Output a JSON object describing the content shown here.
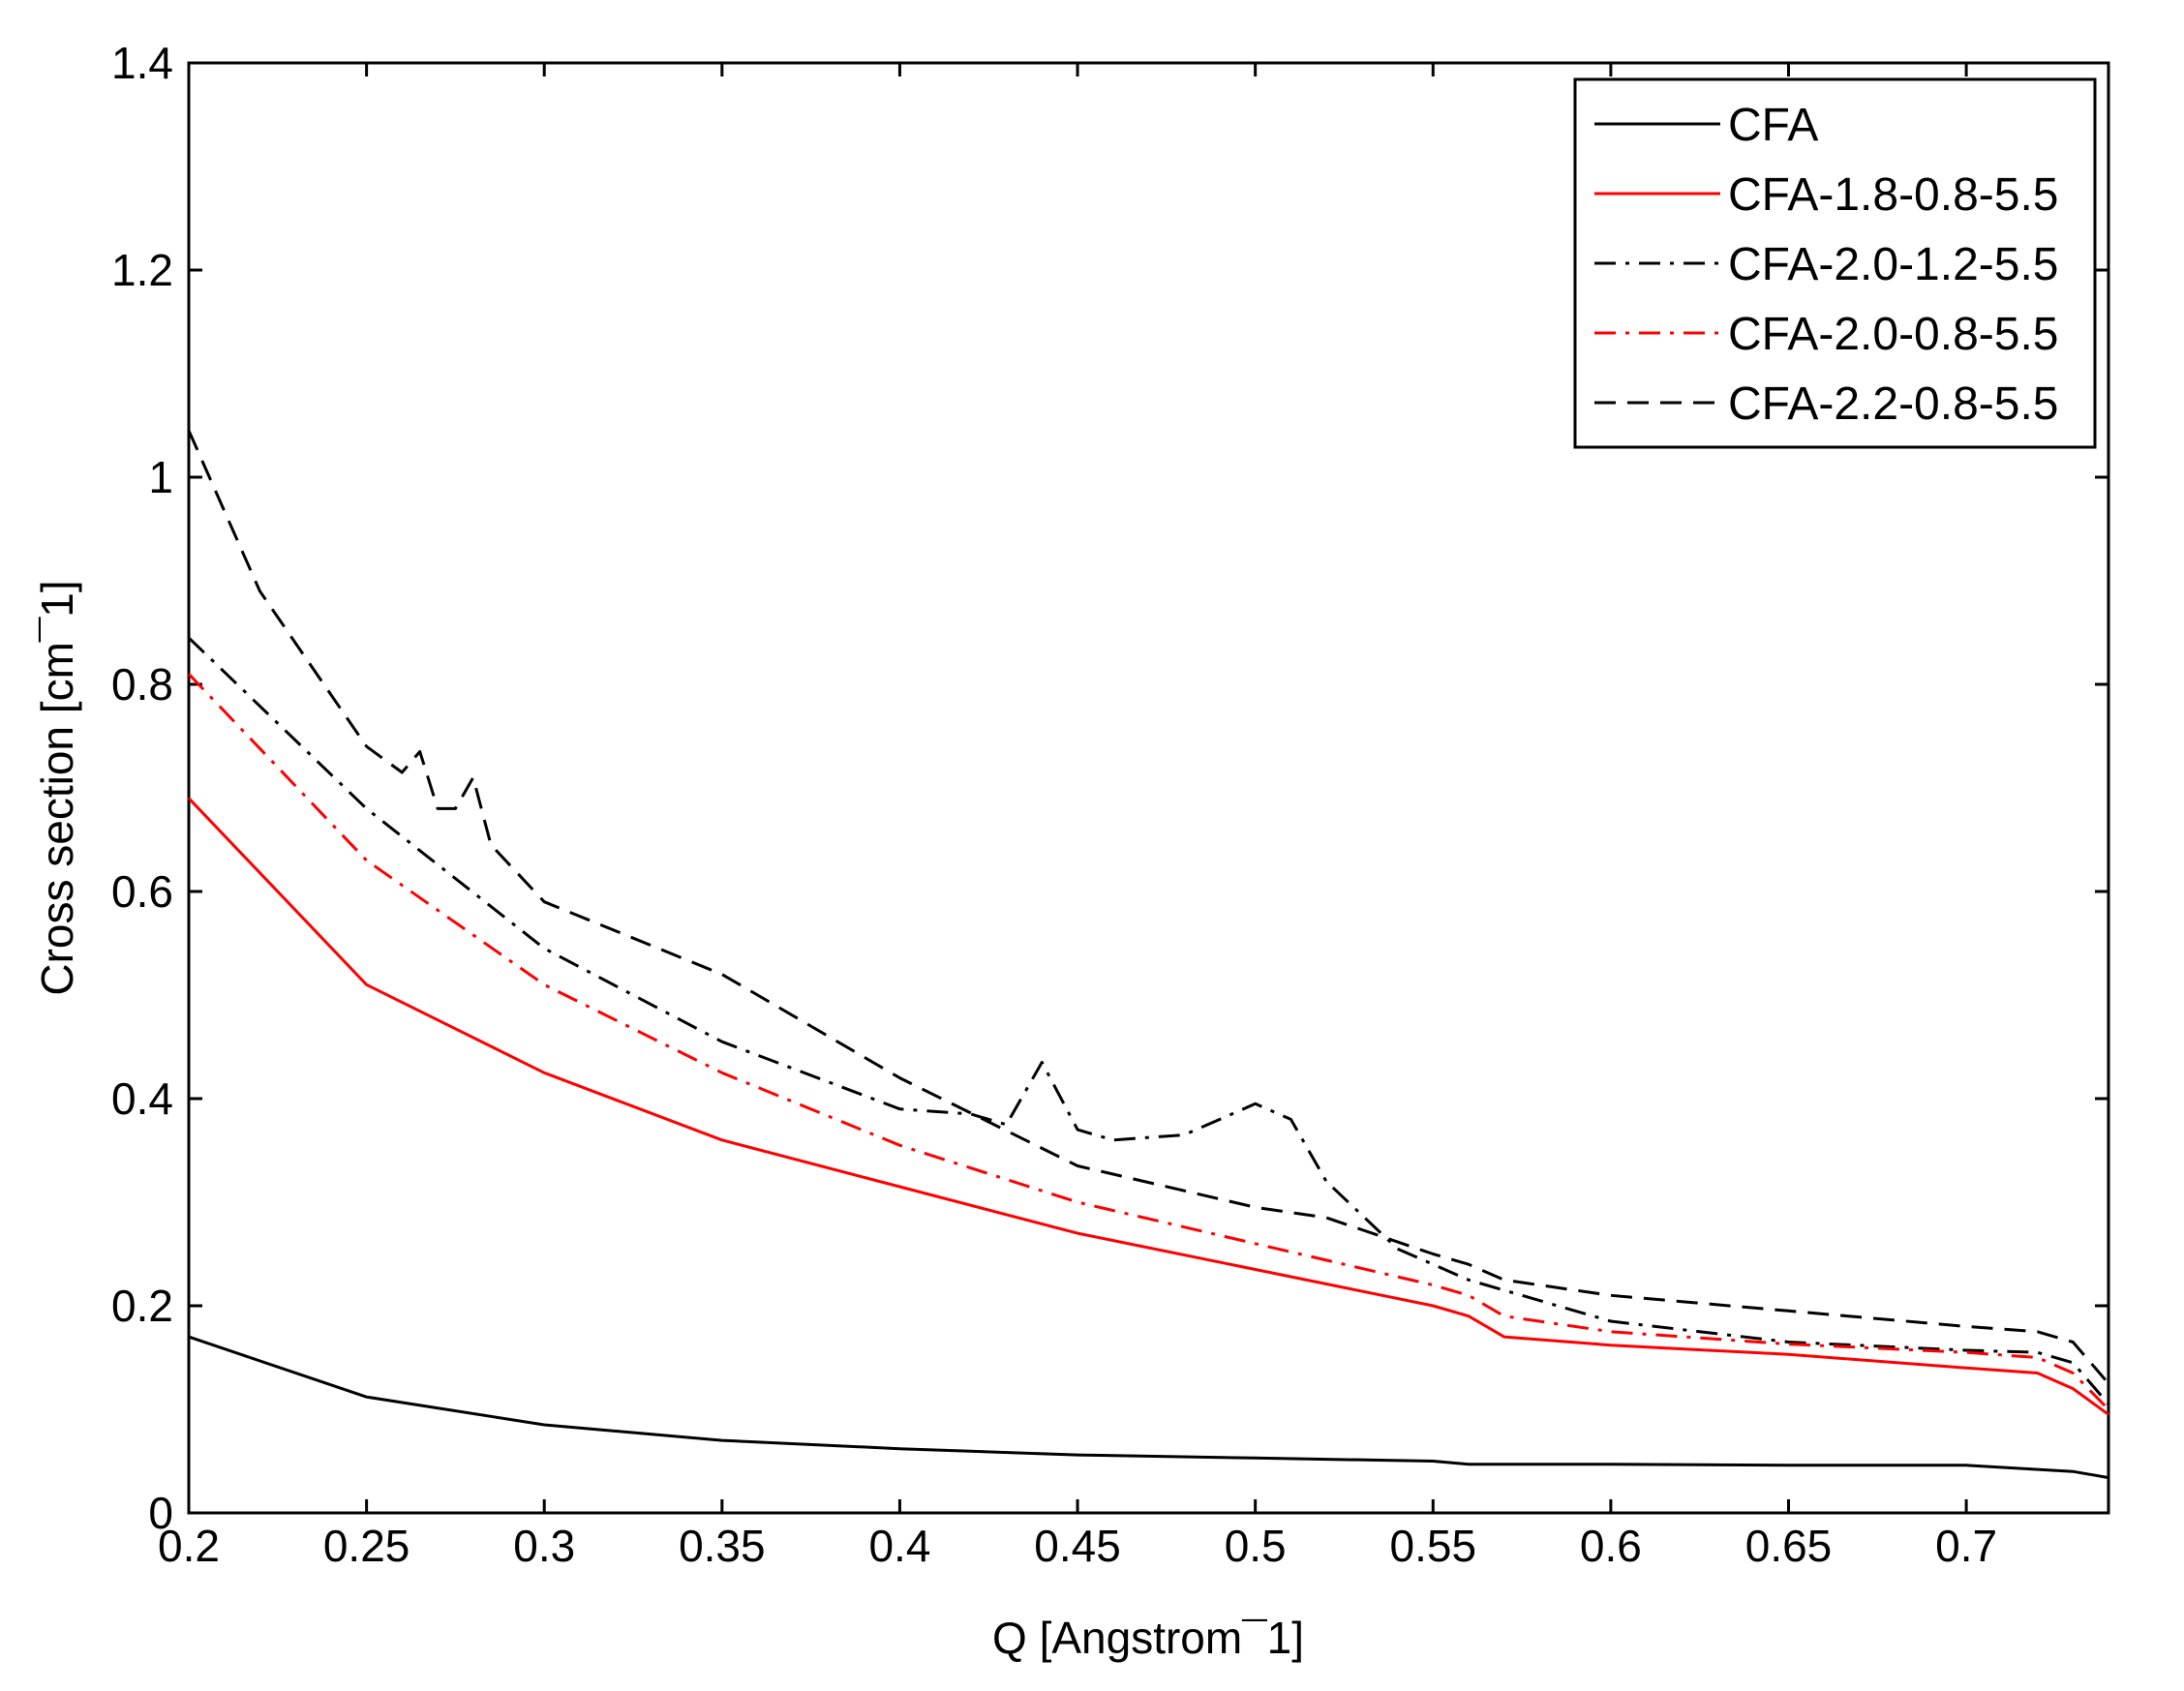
{
  "chart_data": {
    "type": "line",
    "xlabel": "Q [Angstrom¯1]",
    "ylabel": "Cross section [cm¯1]",
    "xlim": [
      0.2,
      0.74
    ],
    "ylim": [
      0,
      1.4
    ],
    "xticks": [
      0.2,
      0.25,
      0.3,
      0.35,
      0.4,
      0.45,
      0.5,
      0.55,
      0.6,
      0.65,
      0.7
    ],
    "xtick_labels": [
      "0.2",
      "0.25",
      "0.3",
      "0.35",
      "0.4",
      "0.45",
      "0.5",
      "0.55",
      "0.6",
      "0.65",
      "0.7"
    ],
    "yticks": [
      0,
      0.2,
      0.4,
      0.6,
      0.8,
      1.0,
      1.2,
      1.4
    ],
    "ytick_labels": [
      "0",
      "0.2",
      "0.4",
      "0.6",
      "0.8",
      "1",
      "1.2",
      "1.4"
    ],
    "grid": false,
    "legend_position": "top-right",
    "series": [
      {
        "name": "CFA",
        "color": "#000000",
        "dash": "solid",
        "x": [
          0.2,
          0.25,
          0.3,
          0.35,
          0.4,
          0.45,
          0.5,
          0.55,
          0.56,
          0.6,
          0.65,
          0.7,
          0.73,
          0.74
        ],
        "y": [
          0.17,
          0.112,
          0.085,
          0.07,
          0.062,
          0.056,
          0.053,
          0.05,
          0.047,
          0.047,
          0.046,
          0.046,
          0.04,
          0.034
        ]
      },
      {
        "name": "CFA-1.8-0.8-5.5",
        "color": "#ff0000",
        "dash": "solid",
        "x": [
          0.2,
          0.25,
          0.3,
          0.35,
          0.4,
          0.45,
          0.5,
          0.55,
          0.56,
          0.57,
          0.6,
          0.65,
          0.7,
          0.72,
          0.73,
          0.74
        ],
        "y": [
          0.69,
          0.51,
          0.425,
          0.36,
          0.315,
          0.27,
          0.235,
          0.2,
          0.19,
          0.17,
          0.162,
          0.153,
          0.14,
          0.135,
          0.12,
          0.095
        ]
      },
      {
        "name": "CFA-2.0-1.2-5.5",
        "color": "#000000",
        "dash": "dashdot",
        "x": [
          0.2,
          0.25,
          0.3,
          0.35,
          0.4,
          0.42,
          0.43,
          0.44,
          0.45,
          0.46,
          0.48,
          0.5,
          0.51,
          0.52,
          0.54,
          0.56,
          0.6,
          0.65,
          0.7,
          0.72,
          0.73,
          0.74
        ],
        "y": [
          0.845,
          0.68,
          0.545,
          0.455,
          0.39,
          0.385,
          0.375,
          0.435,
          0.37,
          0.36,
          0.365,
          0.395,
          0.38,
          0.32,
          0.255,
          0.225,
          0.185,
          0.165,
          0.157,
          0.155,
          0.145,
          0.105
        ]
      },
      {
        "name": "CFA-2.0-0.8-5.5",
        "color": "#ff0000",
        "dash": "dashdot",
        "x": [
          0.2,
          0.25,
          0.3,
          0.35,
          0.4,
          0.45,
          0.5,
          0.55,
          0.56,
          0.57,
          0.6,
          0.65,
          0.7,
          0.72,
          0.73,
          0.74
        ],
        "y": [
          0.81,
          0.63,
          0.51,
          0.425,
          0.355,
          0.3,
          0.26,
          0.22,
          0.21,
          0.19,
          0.175,
          0.163,
          0.155,
          0.15,
          0.135,
          0.1
        ]
      },
      {
        "name": "CFA-2.2-0.8-5.5",
        "color": "#000000",
        "dash": "dashed",
        "x": [
          0.2,
          0.22,
          0.25,
          0.26,
          0.265,
          0.27,
          0.275,
          0.28,
          0.285,
          0.3,
          0.35,
          0.4,
          0.45,
          0.5,
          0.52,
          0.55,
          0.56,
          0.57,
          0.6,
          0.65,
          0.7,
          0.72,
          0.73,
          0.74
        ],
        "y": [
          1.045,
          0.89,
          0.74,
          0.715,
          0.735,
          0.68,
          0.68,
          0.71,
          0.645,
          0.59,
          0.52,
          0.42,
          0.335,
          0.295,
          0.285,
          0.25,
          0.24,
          0.225,
          0.21,
          0.195,
          0.18,
          0.175,
          0.165,
          0.125
        ]
      }
    ]
  }
}
